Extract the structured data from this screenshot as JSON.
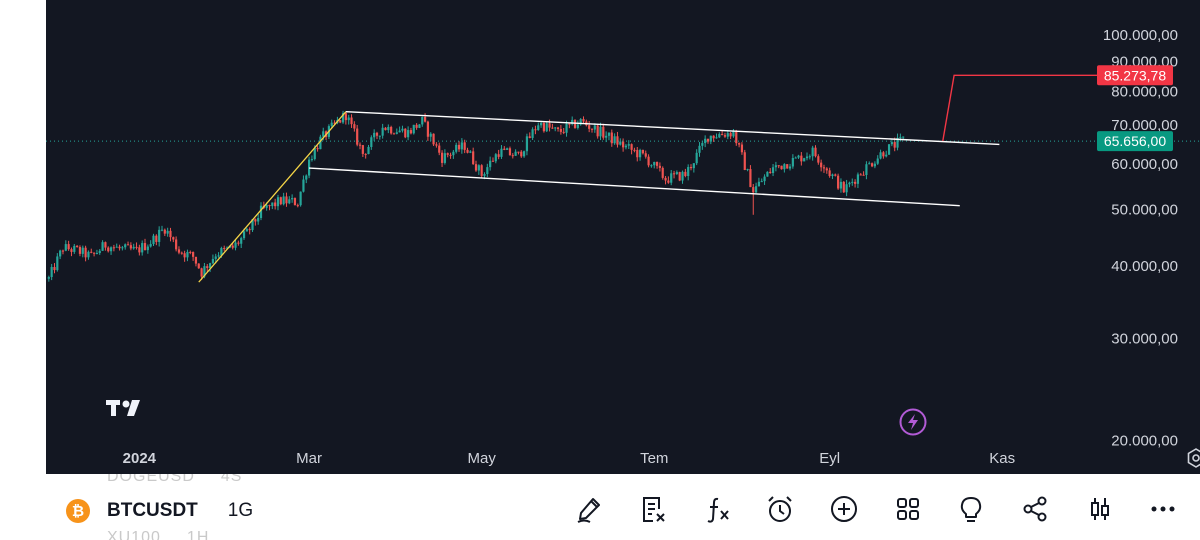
{
  "symbol": {
    "name": "BTCUSDT",
    "interval": "1G",
    "icon": "bitcoin-icon"
  },
  "ghost_symbols": {
    "top": [
      "DOGEUSD",
      "4S"
    ],
    "bottom": [
      "XU100",
      "1H"
    ]
  },
  "price_labels": {
    "target": "85.273,78",
    "current": "65.656,00"
  },
  "colors": {
    "background": "#131722",
    "up": "#26a69a",
    "down": "#ef5350",
    "target": "#f23645",
    "trend_arrow": "#f5d547",
    "channel": "#ffffff",
    "current_tag": "#089981"
  },
  "toolbar": [
    "draw-icon",
    "notes-icon",
    "indicators-icon",
    "alert-icon",
    "add-icon",
    "layouts-icon",
    "ideas-icon",
    "share-icon",
    "candle-style-icon",
    "more-icon"
  ],
  "chart_data": {
    "type": "candlestick",
    "title": "",
    "scale": "log",
    "y_ticks": [
      "20.000,00",
      "30.000,00",
      "40.000,00",
      "50.000,00",
      "60.000,00",
      "70.000,00",
      "80.000,00",
      "90.000,00",
      "100.000,00"
    ],
    "y_tick_values": [
      20000,
      30000,
      40000,
      50000,
      60000,
      70000,
      80000,
      90000,
      100000
    ],
    "x_ticks": [
      {
        "label": "2024",
        "date": "2024-01-01",
        "bold": true
      },
      {
        "label": "Mar",
        "date": "2024-03-01",
        "bold": false
      },
      {
        "label": "May",
        "date": "2024-05-01",
        "bold": false
      },
      {
        "label": "Tem",
        "date": "2024-07-01",
        "bold": false
      },
      {
        "label": "Eyl",
        "date": "2024-09-01",
        "bold": false
      },
      {
        "label": "Kas",
        "date": "2024-11-01",
        "bold": false
      }
    ],
    "x_range": [
      "2023-11-29",
      "2024-12-19"
    ],
    "y_range": [
      17500,
      115000
    ],
    "price_series": [
      {
        "date": "2023-11-30",
        "close": 38000
      },
      {
        "date": "2023-12-05",
        "close": 43000
      },
      {
        "date": "2023-12-10",
        "close": 42500
      },
      {
        "date": "2023-12-15",
        "close": 41500
      },
      {
        "date": "2023-12-20",
        "close": 43500
      },
      {
        "date": "2023-12-25",
        "close": 42800
      },
      {
        "date": "2023-12-31",
        "close": 42500
      },
      {
        "date": "2024-01-05",
        "close": 44000
      },
      {
        "date": "2024-01-10",
        "close": 46500
      },
      {
        "date": "2024-01-15",
        "close": 42500
      },
      {
        "date": "2024-01-20",
        "close": 41500
      },
      {
        "date": "2024-01-23",
        "close": 39000
      },
      {
        "date": "2024-01-28",
        "close": 42000
      },
      {
        "date": "2024-02-03",
        "close": 43000
      },
      {
        "date": "2024-02-08",
        "close": 45500
      },
      {
        "date": "2024-02-13",
        "close": 49700
      },
      {
        "date": "2024-02-20",
        "close": 51800
      },
      {
        "date": "2024-02-26",
        "close": 51500
      },
      {
        "date": "2024-03-01",
        "close": 61000
      },
      {
        "date": "2024-03-05",
        "close": 66000
      },
      {
        "date": "2024-03-10",
        "close": 70000
      },
      {
        "date": "2024-03-14",
        "close": 73000
      },
      {
        "date": "2024-03-20",
        "close": 62500
      },
      {
        "date": "2024-03-27",
        "close": 69500
      },
      {
        "date": "2024-04-05",
        "close": 68000
      },
      {
        "date": "2024-04-10",
        "close": 71000
      },
      {
        "date": "2024-04-17",
        "close": 61500
      },
      {
        "date": "2024-04-25",
        "close": 64500
      },
      {
        "date": "2024-05-01",
        "close": 57500
      },
      {
        "date": "2024-05-07",
        "close": 63000
      },
      {
        "date": "2024-05-14",
        "close": 62000
      },
      {
        "date": "2024-05-21",
        "close": 70500
      },
      {
        "date": "2024-05-28",
        "close": 68000
      },
      {
        "date": "2024-06-05",
        "close": 71000
      },
      {
        "date": "2024-06-12",
        "close": 68000
      },
      {
        "date": "2024-06-20",
        "close": 64500
      },
      {
        "date": "2024-06-28",
        "close": 61500
      },
      {
        "date": "2024-07-05",
        "close": 56500
      },
      {
        "date": "2024-07-12",
        "close": 57500
      },
      {
        "date": "2024-07-20",
        "close": 67000
      },
      {
        "date": "2024-07-29",
        "close": 68000
      },
      {
        "date": "2024-08-05",
        "close": 54000
      },
      {
        "date": "2024-08-12",
        "close": 59000
      },
      {
        "date": "2024-08-20",
        "close": 61000
      },
      {
        "date": "2024-08-26",
        "close": 63000
      },
      {
        "date": "2024-09-06",
        "close": 54000
      },
      {
        "date": "2024-09-12",
        "close": 58000
      },
      {
        "date": "2024-09-20",
        "close": 63000
      },
      {
        "date": "2024-09-27",
        "close": 66000
      }
    ],
    "price_extremes": [
      {
        "date": "2024-03-14",
        "high": 73800
      },
      {
        "date": "2024-08-05",
        "low": 49000
      }
    ],
    "annotations": {
      "trend_arrow": {
        "from": {
          "date": "2024-01-22",
          "price": 37500
        },
        "to": {
          "date": "2024-03-14",
          "price": 73800
        }
      },
      "channel_upper": {
        "from": {
          "date": "2024-03-14",
          "price": 73800
        },
        "to": {
          "date": "2024-10-31",
          "price": 64800
        }
      },
      "channel_lower": {
        "from": {
          "date": "2024-03-01",
          "price": 59000
        },
        "to": {
          "date": "2024-10-17",
          "price": 50800
        }
      },
      "breakout_line": {
        "from": {
          "date": "2024-10-11",
          "price": 65700
        },
        "to": {
          "date": "2024-10-15",
          "price": 85273.78
        },
        "end": "2024-12-19"
      },
      "current_price_line": 65656
    }
  }
}
